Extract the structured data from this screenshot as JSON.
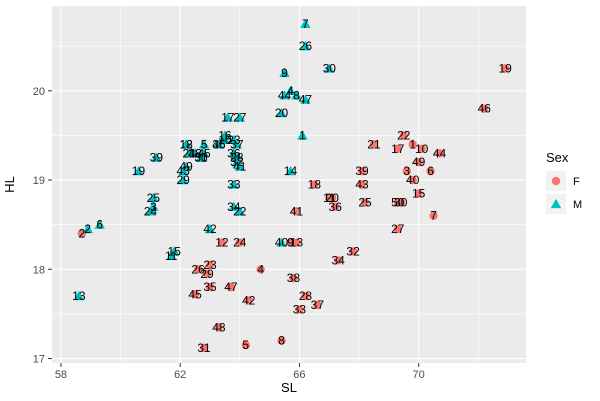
{
  "chart_data": {
    "type": "scatter",
    "xlabel": "SL",
    "ylabel": "HL",
    "xlim": [
      57.7,
      73.6
    ],
    "ylim": [
      16.95,
      20.95
    ],
    "x_ticks": [
      58,
      62,
      66,
      70
    ],
    "y_ticks": [
      17,
      18,
      19,
      20
    ],
    "grid": true,
    "legend": {
      "title": "Sex",
      "position": "right",
      "entries": [
        {
          "label": "F",
          "shape": "circle",
          "color": "#F8766D"
        },
        {
          "label": "M",
          "shape": "triangle",
          "color": "#00BFC4"
        }
      ]
    },
    "series": [
      {
        "name": "F",
        "shape": "circle",
        "color": "#F8766D",
        "points": [
          {
            "id": "1",
            "x": 69.8,
            "y": 19.4
          },
          {
            "id": "2",
            "x": 58.7,
            "y": 18.4
          },
          {
            "id": "3",
            "x": 69.6,
            "y": 19.1
          },
          {
            "id": "4",
            "x": 64.7,
            "y": 18.0
          },
          {
            "id": "5",
            "x": 64.2,
            "y": 17.15
          },
          {
            "id": "6",
            "x": 70.4,
            "y": 19.1
          },
          {
            "id": "7",
            "x": 70.5,
            "y": 18.6
          },
          {
            "id": "8",
            "x": 65.4,
            "y": 17.2
          },
          {
            "id": "9",
            "x": 65.7,
            "y": 18.3
          },
          {
            "id": "10",
            "x": 70.1,
            "y": 19.35
          },
          {
            "id": "11",
            "x": 67.0,
            "y": 18.8
          },
          {
            "id": "12",
            "x": 63.4,
            "y": 18.3
          },
          {
            "id": "13",
            "x": 65.9,
            "y": 18.3
          },
          {
            "id": "15",
            "x": 70.0,
            "y": 18.85
          },
          {
            "id": "17",
            "x": 69.3,
            "y": 19.35
          },
          {
            "id": "18",
            "x": 66.5,
            "y": 18.95
          },
          {
            "id": "19",
            "x": 72.9,
            "y": 20.25
          },
          {
            "id": "20",
            "x": 67.1,
            "y": 18.8
          },
          {
            "id": "21",
            "x": 68.5,
            "y": 19.4
          },
          {
            "id": "22",
            "x": 69.5,
            "y": 19.5
          },
          {
            "id": "23",
            "x": 63.0,
            "y": 18.05
          },
          {
            "id": "24",
            "x": 64.0,
            "y": 18.3
          },
          {
            "id": "25",
            "x": 68.2,
            "y": 18.75
          },
          {
            "id": "26",
            "x": 62.6,
            "y": 18.0
          },
          {
            "id": "27",
            "x": 69.3,
            "y": 18.45
          },
          {
            "id": "28",
            "x": 66.2,
            "y": 17.7
          },
          {
            "id": "29",
            "x": 62.9,
            "y": 17.95
          },
          {
            "id": "30",
            "x": 69.4,
            "y": 18.75
          },
          {
            "id": "31",
            "x": 62.8,
            "y": 17.12
          },
          {
            "id": "32",
            "x": 67.8,
            "y": 18.2
          },
          {
            "id": "33",
            "x": 66.0,
            "y": 17.55
          },
          {
            "id": "34",
            "x": 67.3,
            "y": 18.1
          },
          {
            "id": "35",
            "x": 63.0,
            "y": 17.8
          },
          {
            "id": "36",
            "x": 67.2,
            "y": 18.7
          },
          {
            "id": "37",
            "x": 66.6,
            "y": 17.6
          },
          {
            "id": "38",
            "x": 65.8,
            "y": 17.9
          },
          {
            "id": "39",
            "x": 68.1,
            "y": 19.1
          },
          {
            "id": "40",
            "x": 69.8,
            "y": 19.0
          },
          {
            "id": "41",
            "x": 65.9,
            "y": 18.65
          },
          {
            "id": "42",
            "x": 64.3,
            "y": 17.65
          },
          {
            "id": "43",
            "x": 68.1,
            "y": 18.95
          },
          {
            "id": "44",
            "x": 70.7,
            "y": 19.3
          },
          {
            "id": "45",
            "x": 62.5,
            "y": 17.72
          },
          {
            "id": "46",
            "x": 72.2,
            "y": 19.8
          },
          {
            "id": "47",
            "x": 63.7,
            "y": 17.8
          },
          {
            "id": "48",
            "x": 63.3,
            "y": 17.35
          },
          {
            "id": "49",
            "x": 70.0,
            "y": 19.2
          },
          {
            "id": "50",
            "x": 69.3,
            "y": 18.75
          }
        ]
      },
      {
        "name": "M",
        "shape": "triangle",
        "color": "#00BFC4",
        "points": [
          {
            "id": "1",
            "x": 66.1,
            "y": 19.5
          },
          {
            "id": "2",
            "x": 58.9,
            "y": 18.45
          },
          {
            "id": "3",
            "x": 61.1,
            "y": 18.7
          },
          {
            "id": "4",
            "x": 65.7,
            "y": 20.0
          },
          {
            "id": "5",
            "x": 62.8,
            "y": 19.4
          },
          {
            "id": "6",
            "x": 59.3,
            "y": 18.5
          },
          {
            "id": "7",
            "x": 66.2,
            "y": 20.75
          },
          {
            "id": "8",
            "x": 65.9,
            "y": 19.95
          },
          {
            "id": "9",
            "x": 65.5,
            "y": 20.2
          },
          {
            "id": "10",
            "x": 63.5,
            "y": 19.45
          },
          {
            "id": "11",
            "x": 61.7,
            "y": 18.15
          },
          {
            "id": "12",
            "x": 62.2,
            "y": 19.4
          },
          {
            "id": "13",
            "x": 58.6,
            "y": 17.7
          },
          {
            "id": "14",
            "x": 65.7,
            "y": 19.1
          },
          {
            "id": "15",
            "x": 61.8,
            "y": 18.2
          },
          {
            "id": "16",
            "x": 63.5,
            "y": 19.5
          },
          {
            "id": "17",
            "x": 63.6,
            "y": 19.7
          },
          {
            "id": "18",
            "x": 62.2,
            "y": 19.4
          },
          {
            "id": "19",
            "x": 60.6,
            "y": 19.1
          },
          {
            "id": "20",
            "x": 65.4,
            "y": 19.75
          },
          {
            "id": "21",
            "x": 62.3,
            "y": 19.3
          },
          {
            "id": "22",
            "x": 64.0,
            "y": 18.65
          },
          {
            "id": "23",
            "x": 63.8,
            "y": 19.45
          },
          {
            "id": "24",
            "x": 61.0,
            "y": 18.65
          },
          {
            "id": "25",
            "x": 61.1,
            "y": 18.8
          },
          {
            "id": "26",
            "x": 66.2,
            "y": 20.5
          },
          {
            "id": "27",
            "x": 64.0,
            "y": 19.7
          },
          {
            "id": "28",
            "x": 63.9,
            "y": 19.25
          },
          {
            "id": "29",
            "x": 62.1,
            "y": 19.0
          },
          {
            "id": "30",
            "x": 67.0,
            "y": 20.25
          },
          {
            "id": "31",
            "x": 62.7,
            "y": 19.25
          },
          {
            "id": "32",
            "x": 63.9,
            "y": 19.2
          },
          {
            "id": "33",
            "x": 63.8,
            "y": 18.95
          },
          {
            "id": "34",
            "x": 63.8,
            "y": 18.7
          },
          {
            "id": "35",
            "x": 63.3,
            "y": 19.4
          },
          {
            "id": "36",
            "x": 63.8,
            "y": 19.3
          },
          {
            "id": "37",
            "x": 63.9,
            "y": 19.4
          },
          {
            "id": "38",
            "x": 62.5,
            "y": 19.3
          },
          {
            "id": "39",
            "x": 61.2,
            "y": 19.25
          },
          {
            "id": "40",
            "x": 65.4,
            "y": 18.3
          },
          {
            "id": "41",
            "x": 64.0,
            "y": 19.15
          },
          {
            "id": "42",
            "x": 63.0,
            "y": 18.45
          },
          {
            "id": "43",
            "x": 62.1,
            "y": 19.1
          },
          {
            "id": "44",
            "x": 65.5,
            "y": 19.95
          },
          {
            "id": "45",
            "x": 62.8,
            "y": 19.3
          },
          {
            "id": "46",
            "x": 63.3,
            "y": 19.4
          },
          {
            "id": "47",
            "x": 66.2,
            "y": 19.9
          },
          {
            "id": "48",
            "x": 62.5,
            "y": 19.3
          },
          {
            "id": "49",
            "x": 62.2,
            "y": 19.15
          },
          {
            "id": "50",
            "x": 62.7,
            "y": 19.25
          }
        ]
      }
    ]
  }
}
